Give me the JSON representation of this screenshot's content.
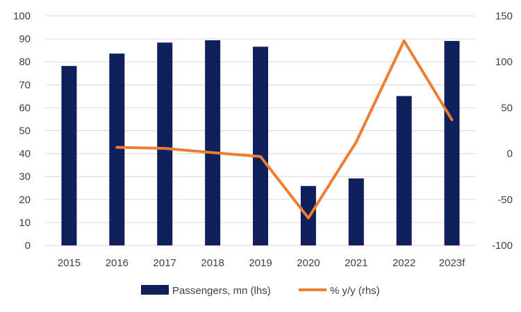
{
  "chart_data": {
    "type": "bar",
    "categories": [
      "2015",
      "2016",
      "2017",
      "2018",
      "2019",
      "2020",
      "2021",
      "2022",
      "2023f"
    ],
    "series": [
      {
        "name": "Passengers, mn (lhs)",
        "type": "bar",
        "axis": "left",
        "color": "#0e1f5b",
        "values": [
          78.2,
          83.6,
          88.4,
          89.4,
          86.6,
          25.9,
          29.2,
          65.1,
          89.1
        ]
      },
      {
        "name": "% y/y (rhs)",
        "type": "line",
        "axis": "right",
        "color": "#ed7d31",
        "values": [
          null,
          6.9,
          5.7,
          1.1,
          -3.1,
          -70.1,
          12.7,
          122.9,
          36.9
        ]
      }
    ],
    "y_left": {
      "min": 0,
      "max": 100,
      "ticks": [
        "0",
        "10",
        "20",
        "30",
        "40",
        "50",
        "60",
        "70",
        "80",
        "90",
        "100"
      ]
    },
    "y_right": {
      "min": -100,
      "max": 150,
      "ticks": [
        "-100",
        "-50",
        "0",
        "50",
        "100",
        "150"
      ]
    },
    "grid": true,
    "legend": {
      "position": "bottom"
    }
  }
}
